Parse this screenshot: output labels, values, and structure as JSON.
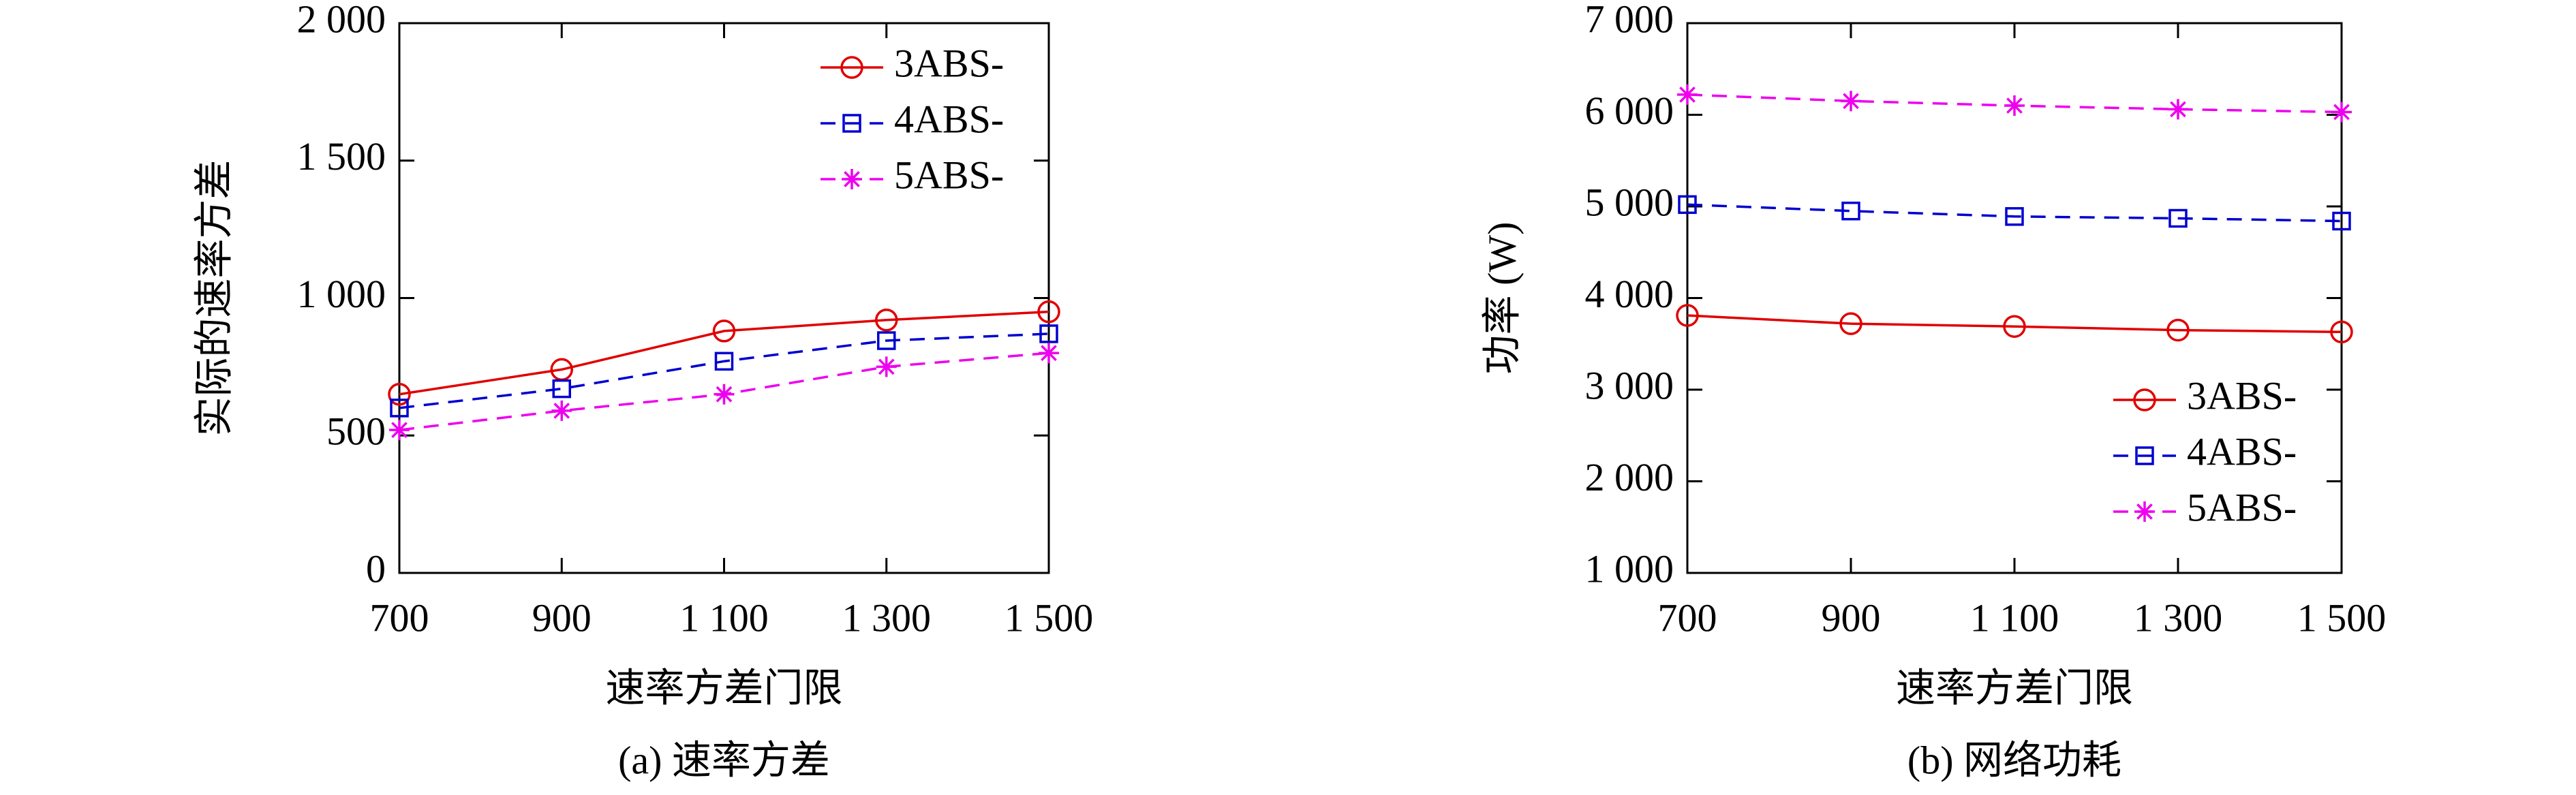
{
  "chart_data": [
    {
      "type": "line",
      "caption": "(a) 速率方差",
      "xlabel": "速率方差门限",
      "ylabel": "实际的速率方差",
      "x": [
        700,
        900,
        1100,
        1300,
        1500
      ],
      "xlim": [
        700,
        1500
      ],
      "xticks": [
        700,
        900,
        {
          "value": 1100,
          "label": "1 100"
        },
        {
          "value": 1300,
          "label": "1 300"
        },
        {
          "value": 1500,
          "label": "1 500"
        }
      ],
      "ylim": [
        0,
        2000
      ],
      "yticks": [
        0,
        500,
        {
          "value": 1000,
          "label": "1 000"
        },
        {
          "value": 1500,
          "label": "1 500"
        },
        {
          "value": 2000,
          "label": "2 000"
        }
      ],
      "legend": "upper right",
      "series": [
        {
          "name": "3ABS-",
          "color": "#e00000",
          "marker": "circle",
          "dash": "solid",
          "values": [
            650,
            740,
            880,
            920,
            950
          ]
        },
        {
          "name": "4ABS-",
          "color": "#0000d0",
          "marker": "square",
          "dash": "dashed",
          "values": [
            600,
            670,
            770,
            845,
            870
          ]
        },
        {
          "name": "5ABS-",
          "color": "#ee00ee",
          "marker": "star",
          "dash": "dashed",
          "values": [
            520,
            590,
            650,
            750,
            800
          ]
        }
      ]
    },
    {
      "type": "line",
      "caption": "(b) 网络功耗",
      "xlabel": "速率方差门限",
      "ylabel": "功率 (W)",
      "x": [
        700,
        900,
        1100,
        1300,
        1500
      ],
      "xlim": [
        700,
        1500
      ],
      "xticks": [
        700,
        900,
        {
          "value": 1100,
          "label": "1 100"
        },
        {
          "value": 1300,
          "label": "1 300"
        },
        {
          "value": 1500,
          "label": "1 500"
        }
      ],
      "ylim": [
        1000,
        7000
      ],
      "yticks": [
        {
          "value": 1000,
          "label": "1 000"
        },
        {
          "value": 2000,
          "label": "2 000"
        },
        {
          "value": 3000,
          "label": "3 000"
        },
        {
          "value": 4000,
          "label": "4 000"
        },
        {
          "value": 5000,
          "label": "5 000"
        },
        {
          "value": 6000,
          "label": "6 000"
        },
        {
          "value": 7000,
          "label": "7 000"
        }
      ],
      "legend": "lower right",
      "series": [
        {
          "name": "3ABS-",
          "color": "#e00000",
          "marker": "circle",
          "dash": "solid",
          "values": [
            3810,
            3720,
            3690,
            3650,
            3630
          ]
        },
        {
          "name": "4ABS-",
          "color": "#0000d0",
          "marker": "square",
          "dash": "dashed",
          "values": [
            5020,
            4950,
            4890,
            4870,
            4840
          ]
        },
        {
          "name": "5ABS-",
          "color": "#ee00ee",
          "marker": "star",
          "dash": "dashed",
          "values": [
            6220,
            6150,
            6100,
            6060,
            6030
          ]
        }
      ]
    }
  ]
}
